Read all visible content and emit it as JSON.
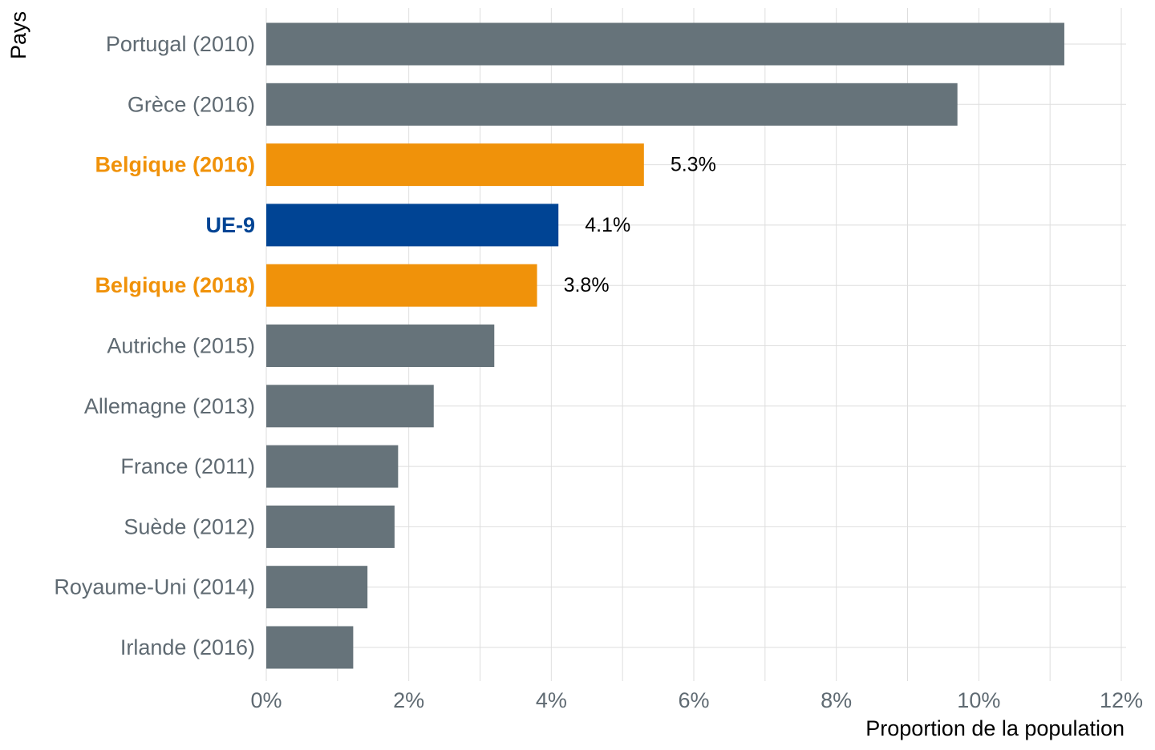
{
  "chart_data": {
    "type": "bar",
    "orientation": "horizontal",
    "xlabel": "Proportion de la population",
    "ylabel": "Pays",
    "xlim": [
      0,
      12
    ],
    "x_ticks": [
      0,
      2,
      4,
      6,
      8,
      10,
      12
    ],
    "x_tick_labels": [
      "0%",
      "2%",
      "4%",
      "6%",
      "8%",
      "10%",
      "12%"
    ],
    "grid": true,
    "categories": [
      "Portugal (2010)",
      "Grèce (2016)",
      "Belgique (2016)",
      "UE-9",
      "Belgique (2018)",
      "Autriche (2015)",
      "Allemagne (2013)",
      "France (2011)",
      "Suède (2012)",
      "Royaume-Uni (2014)",
      "Irlande (2016)"
    ],
    "values": [
      11.2,
      9.7,
      5.3,
      4.1,
      3.8,
      3.2,
      2.35,
      1.85,
      1.8,
      1.42,
      1.22
    ],
    "highlight": [
      null,
      null,
      "orange",
      "blue",
      "orange",
      null,
      null,
      null,
      null,
      null,
      null
    ],
    "data_labels": [
      null,
      null,
      "5.3%",
      "4.1%",
      "3.8%",
      null,
      null,
      null,
      null,
      null,
      null
    ],
    "colors": {
      "default": "#66737a",
      "orange": "#f0920a",
      "blue": "#004494"
    }
  }
}
